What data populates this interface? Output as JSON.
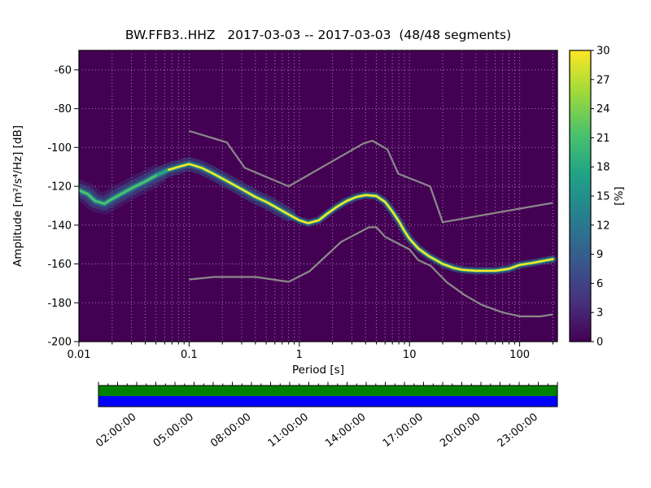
{
  "chart_data": {
    "type": "heatmap",
    "title": "BW.FFB3..HHZ   2017-03-03 -- 2017-03-03  (48/48 segments)",
    "xlabel": "Period [s]",
    "ylabel": "Amplitude [m²/s⁴/Hz] [dB]",
    "xscale": "log",
    "xlim": [
      0.01,
      220
    ],
    "ylim": [
      -200,
      -50
    ],
    "grid": true,
    "xticks": {
      "values": [
        0.01,
        0.1,
        1,
        10,
        100
      ],
      "labels": [
        "0.01",
        "0.1",
        "1",
        "10",
        "100"
      ]
    },
    "yticks": [
      -60,
      -80,
      -100,
      -120,
      -140,
      -160,
      -180,
      -200
    ],
    "colors": {
      "plot_bg": "#440154",
      "grid": "#ffffff",
      "noise_model": "#8a8a8a",
      "frame": "#000000"
    },
    "ppsd_mode": {
      "description": "mode of probabilistic power spectral density distribution, dB vs period",
      "periods": [
        0.01,
        0.012,
        0.014,
        0.017,
        0.02,
        0.025,
        0.03,
        0.04,
        0.05,
        0.065,
        0.08,
        0.1,
        0.13,
        0.16,
        0.2,
        0.25,
        0.3,
        0.4,
        0.5,
        0.6,
        0.8,
        1.0,
        1.2,
        1.5,
        1.8,
        2.2,
        2.7,
        3.3,
        4,
        5,
        6,
        7,
        8,
        9,
        10,
        12,
        15,
        20,
        25,
        30,
        40,
        60,
        80,
        100,
        130,
        160,
        200
      ],
      "db": [
        -122,
        -124,
        -127.5,
        -129,
        -126.5,
        -123.5,
        -121,
        -117.5,
        -114.5,
        -111.5,
        -110,
        -108.5,
        -110.5,
        -113,
        -116,
        -119,
        -121.5,
        -125.5,
        -128,
        -130.5,
        -134.5,
        -137.5,
        -139,
        -137.5,
        -134,
        -130.5,
        -127.5,
        -125.5,
        -124.5,
        -125,
        -128,
        -133,
        -138,
        -143,
        -147,
        -152,
        -156,
        -160,
        -162,
        -163,
        -163.5,
        -163.5,
        -162.5,
        -160.5,
        -159.5,
        -158.5,
        -157.5
      ]
    },
    "band_layers": [
      {
        "pmin": 0.01,
        "pmax": 0.05,
        "width": 26,
        "color": "#3e4c8a",
        "opacity": 0.3
      },
      {
        "pmin": 0.01,
        "pmax": 0.9,
        "width": 17,
        "color": "#33628d",
        "opacity": 0.45
      },
      {
        "pmin": 0.01,
        "pmax": 220,
        "width": 9,
        "color": "#2c718e",
        "opacity": 0.55
      },
      {
        "pmin": 0.01,
        "pmax": 220,
        "width": 4.5,
        "color": "#27ad81",
        "opacity": 0.85
      },
      {
        "pmin": 0.055,
        "pmax": 220,
        "width": 2.4,
        "color": "#fde725",
        "opacity": 1
      },
      {
        "pmin": 0.01,
        "pmax": 0.06,
        "width": 2.4,
        "color": "#52c569",
        "opacity": 0.9
      }
    ],
    "noise_models": {
      "nhnm": {
        "periods": [
          0.1,
          0.22,
          0.32,
          0.8,
          3.8,
          4.6,
          6.3,
          7.9,
          15.4,
          20,
          100,
          200
        ],
        "db": [
          -91.5,
          -97.4,
          -110.5,
          -120,
          -98,
          -96.5,
          -101,
          -113.5,
          -120,
          -138.5,
          -131.5,
          -128.5
        ]
      },
      "nlnm": {
        "periods": [
          0.1,
          0.17,
          0.4,
          0.8,
          1.24,
          2.4,
          4.3,
          5,
          6,
          10,
          12,
          15.6,
          21.9,
          31.6,
          45,
          70,
          101,
          154,
          200
        ],
        "db": [
          -168,
          -166.7,
          -166.7,
          -169.2,
          -163.7,
          -148.6,
          -141.1,
          -141.1,
          -146,
          -152.5,
          -158,
          -161,
          -169.5,
          -176,
          -181,
          -185,
          -187,
          -187,
          -186
        ]
      }
    },
    "colorbar": {
      "label": "[%]",
      "min": 0,
      "max": 30,
      "ticks": [
        0,
        3,
        6,
        9,
        12,
        15,
        18,
        21,
        24,
        27,
        30
      ],
      "colormap": "viridis",
      "gradient": [
        [
          "0%",
          "#440154"
        ],
        [
          "14%",
          "#46327e"
        ],
        [
          "29%",
          "#365c8d"
        ],
        [
          "43%",
          "#277f8e"
        ],
        [
          "57%",
          "#1fa187"
        ],
        [
          "71%",
          "#4ac16d"
        ],
        [
          "86%",
          "#a0da39"
        ],
        [
          "100%",
          "#fde725"
        ]
      ]
    },
    "timeline": {
      "stripes": [
        "#008000",
        "#0000ff"
      ],
      "hours_total": 24,
      "tick_hours": [
        2,
        5,
        8,
        11,
        14,
        17,
        20,
        23
      ],
      "tick_labels": [
        "02:00:00",
        "05:00:00",
        "08:00:00",
        "11:00:00",
        "14:00:00",
        "17:00:00",
        "20:00:00",
        "23:00:00"
      ]
    }
  }
}
